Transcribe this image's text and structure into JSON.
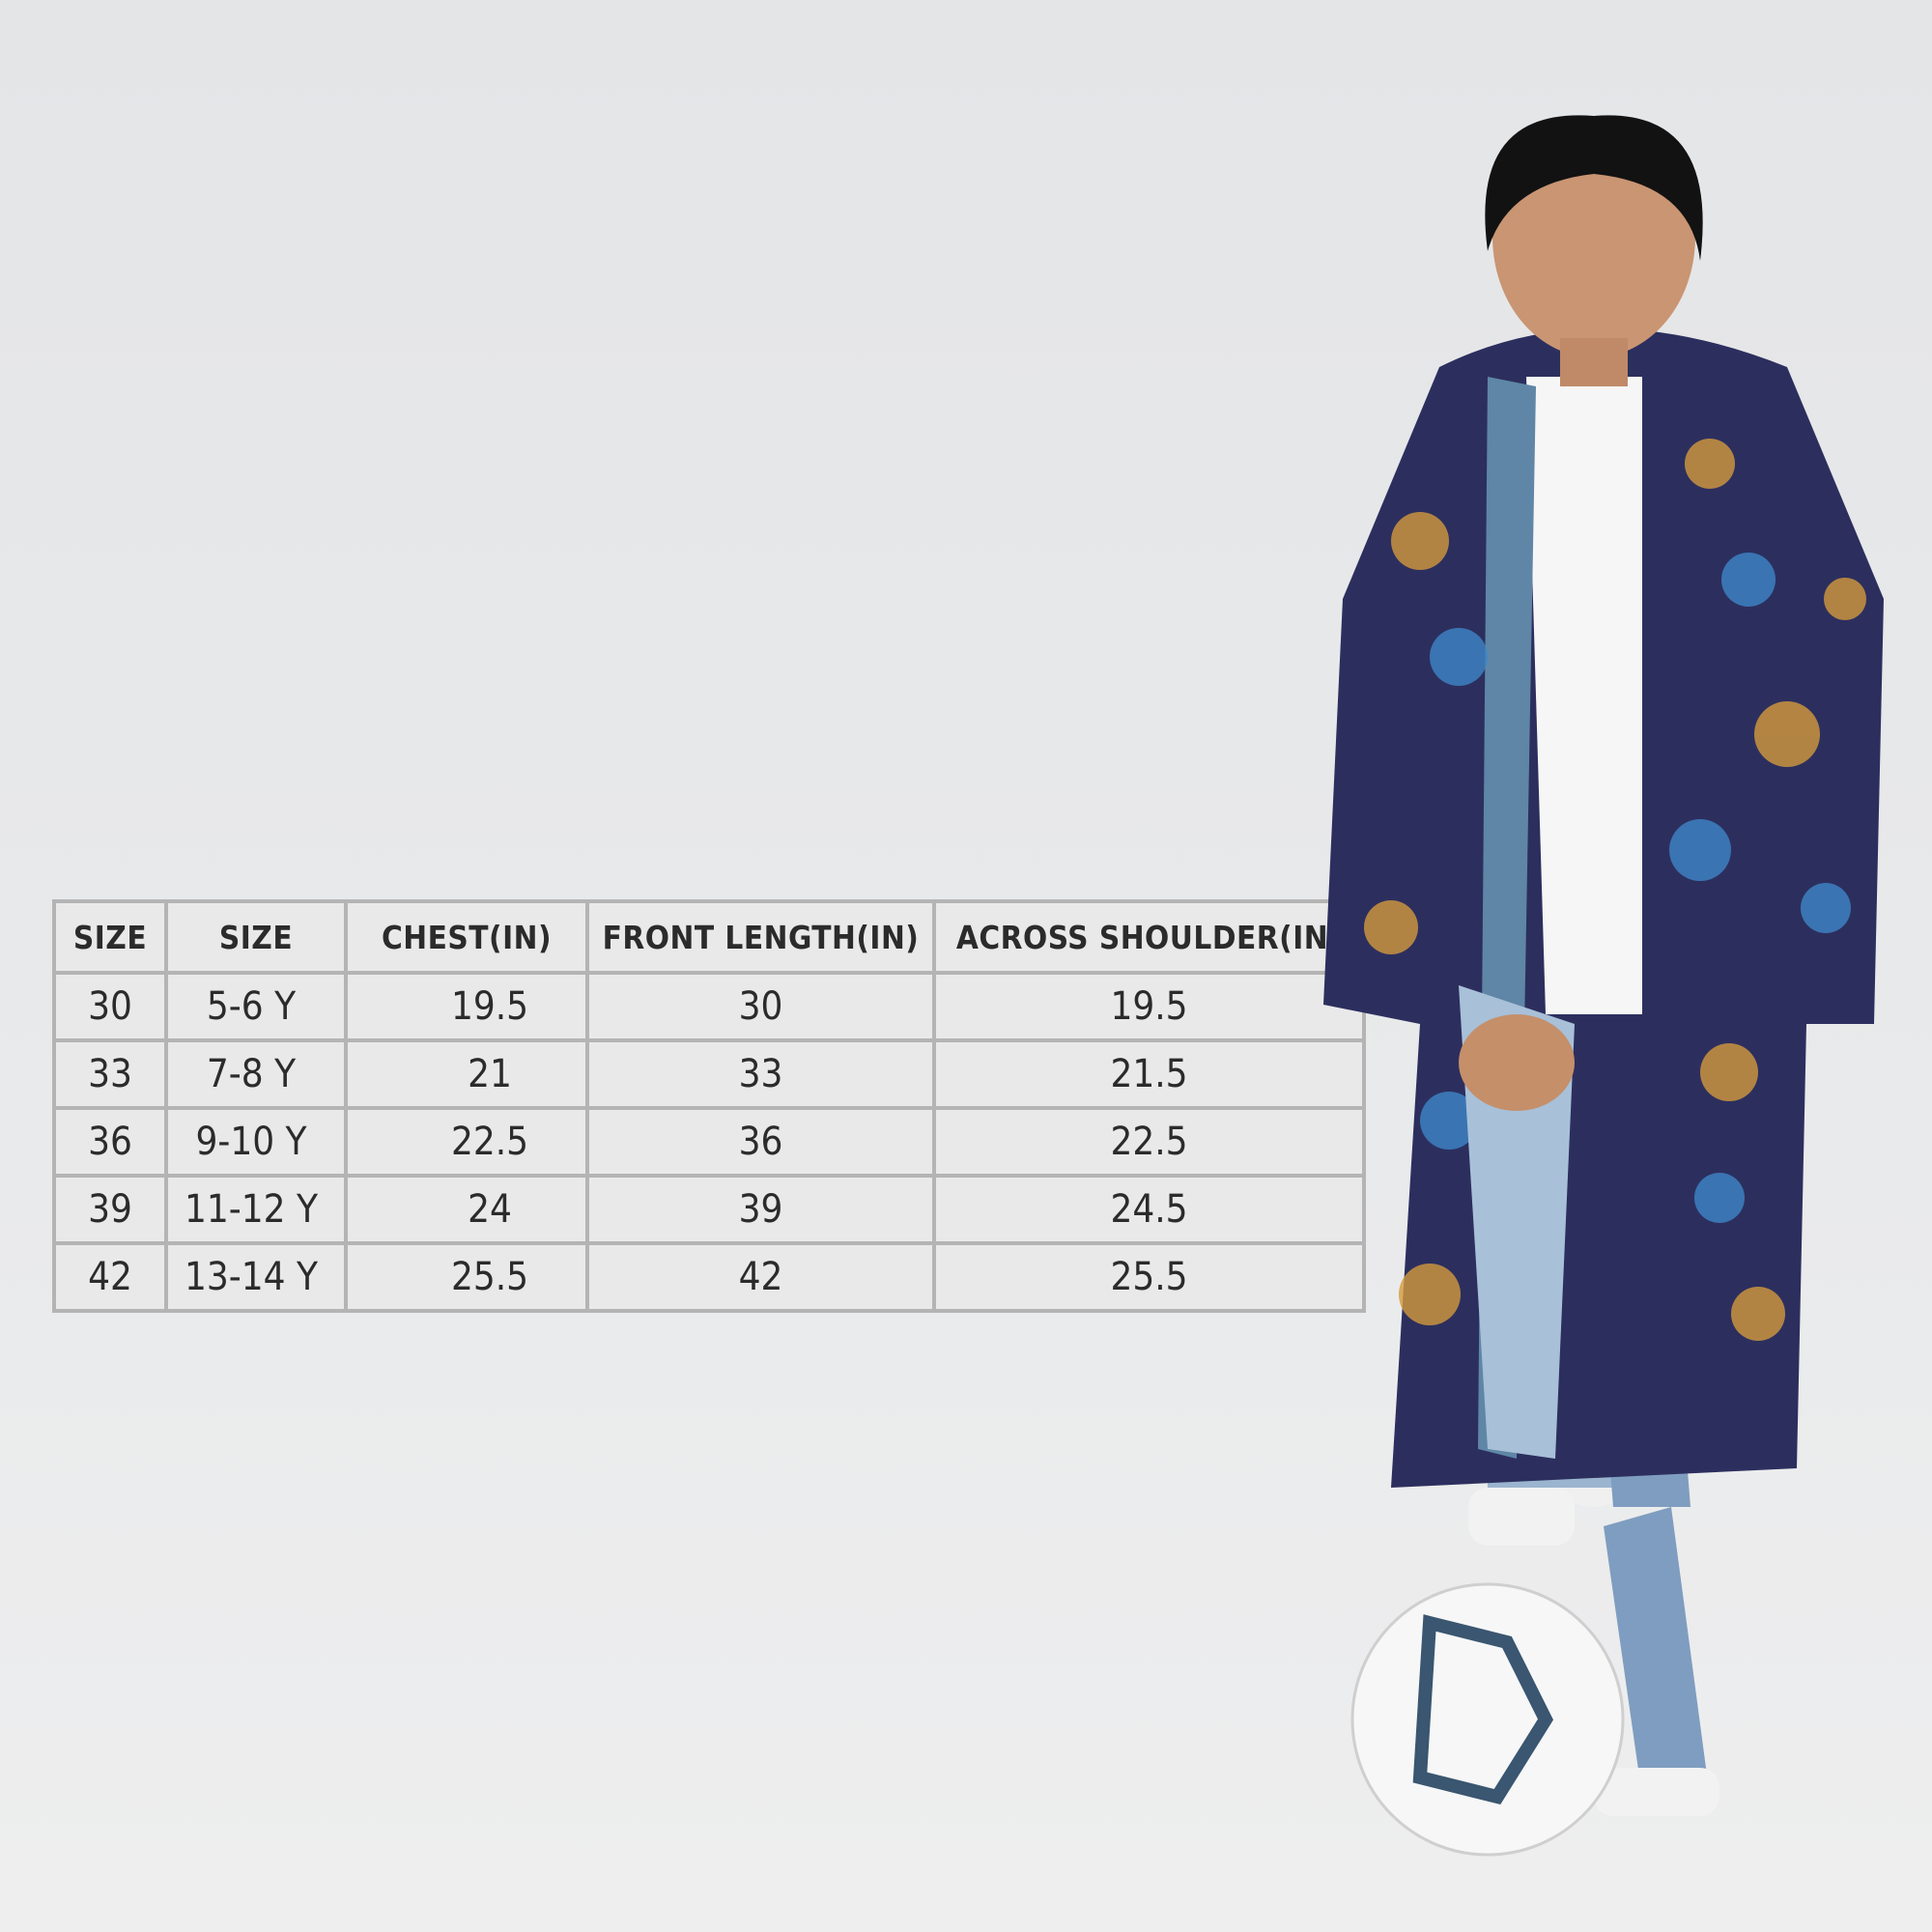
{
  "size_chart": {
    "headers": [
      "SIZE",
      "SIZE",
      "CHEST(IN)",
      "FRONT LENGTH(IN)",
      "ACROSS SHOULDER(IN)"
    ],
    "rows": [
      [
        "30",
        "5-6 Y",
        "19.5",
        "30",
        "19.5"
      ],
      [
        "33",
        "7-8 Y",
        "21",
        "33",
        "21.5"
      ],
      [
        "36",
        "9-10 Y",
        "22.5",
        "36",
        "22.5"
      ],
      [
        "39",
        "11-12 Y",
        "24",
        "39",
        "24.5"
      ],
      [
        "42",
        "13-14 Y",
        "25.5",
        "42",
        "25.5"
      ]
    ]
  },
  "colors": {
    "background": "#e8e9ea",
    "table_border": "#b4b4b4",
    "text": "#2b2b2b",
    "raincoat": "#2c2f5e",
    "print_orange": "#d59a3c",
    "print_blue": "#3f86c7"
  }
}
